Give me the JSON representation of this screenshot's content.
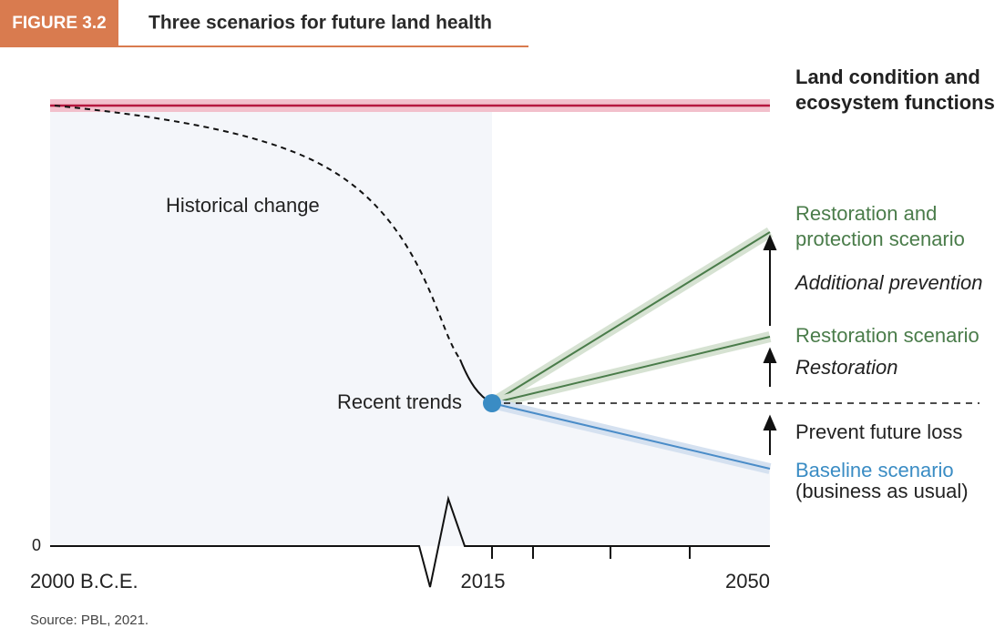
{
  "header": {
    "figure": "FIGURE 3.2",
    "title": "Three scenarios for future land health"
  },
  "labels": {
    "top": [
      "Land condition and",
      "ecosystem functions"
    ],
    "historical": "Historical change",
    "recent": "Recent trends",
    "restoration_protection": [
      "Restoration and",
      "protection scenario"
    ],
    "additional_prevention": "Additional prevention",
    "restoration_scenario": "Restoration scenario",
    "restoration": "Restoration",
    "prevent": "Prevent future loss",
    "baseline": [
      "Baseline scenario",
      "(business as usual)"
    ]
  },
  "axis": {
    "zero": "0",
    "start": "2000 B.C.E.",
    "mid": "2015",
    "end": "2050"
  },
  "source": "Source: PBL, 2021."
}
